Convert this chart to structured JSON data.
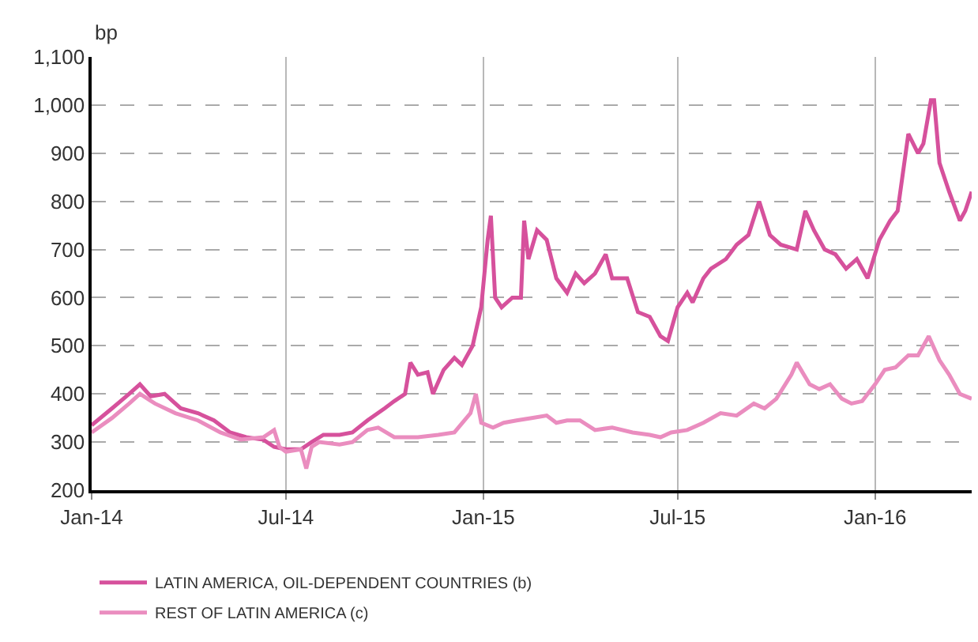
{
  "chart_data": {
    "type": "line",
    "ylabel": "bp",
    "grid": true,
    "legend": "bottom",
    "marker": "none",
    "line_style": "solid",
    "xlim": [
      "2014-01-01",
      "2016-03-31"
    ],
    "xticks": [
      {
        "value": "2014-01-01",
        "label": "Jan-14"
      },
      {
        "value": "2014-07-01",
        "label": "Jul-14"
      },
      {
        "value": "2015-01-01",
        "label": "Jan-15"
      },
      {
        "value": "2015-07-01",
        "label": "Jul-15"
      },
      {
        "value": "2016-01-01",
        "label": "Jan-16"
      }
    ],
    "ylim": [
      200,
      1100
    ],
    "yticks": [
      200,
      300,
      400,
      500,
      600,
      700,
      800,
      900,
      {
        "value": 1000,
        "label": "1,000"
      },
      {
        "value": 1100,
        "label": "1,100"
      }
    ],
    "series": [
      {
        "name": "LATIN AMERICA, OIL-DEPENDENT COUNTRIES (b)",
        "color": "#d6519c",
        "x": [
          "2014-01-01",
          "2014-01-20",
          "2014-02-05",
          "2014-02-15",
          "2014-02-25",
          "2014-03-10",
          "2014-03-25",
          "2014-04-10",
          "2014-04-25",
          "2014-05-10",
          "2014-05-25",
          "2014-06-10",
          "2014-06-20",
          "2014-07-01",
          "2014-07-15",
          "2014-07-25",
          "2014-08-05",
          "2014-08-20",
          "2014-09-01",
          "2014-09-15",
          "2014-10-01",
          "2014-10-10",
          "2014-10-20",
          "2014-10-25",
          "2014-11-01",
          "2014-11-10",
          "2014-11-15",
          "2014-11-25",
          "2014-12-05",
          "2014-12-12",
          "2014-12-22",
          "2014-12-30",
          "2015-01-05",
          "2015-01-08",
          "2015-01-12",
          "2015-01-18",
          "2015-01-28",
          "2015-02-05",
          "2015-02-08",
          "2015-02-12",
          "2015-02-20",
          "2015-03-01",
          "2015-03-10",
          "2015-03-20",
          "2015-03-28",
          "2015-04-05",
          "2015-04-15",
          "2015-04-25",
          "2015-05-01",
          "2015-05-15",
          "2015-05-25",
          "2015-06-05",
          "2015-06-15",
          "2015-06-22",
          "2015-07-01",
          "2015-07-10",
          "2015-07-15",
          "2015-07-25",
          "2015-08-01",
          "2015-08-15",
          "2015-08-25",
          "2015-09-05",
          "2015-09-15",
          "2015-09-25",
          "2015-10-05",
          "2015-10-20",
          "2015-10-28",
          "2015-11-05",
          "2015-11-15",
          "2015-11-25",
          "2015-12-05",
          "2015-12-15",
          "2015-12-25",
          "2016-01-05",
          "2016-01-15",
          "2016-01-22",
          "2016-02-01",
          "2016-02-10",
          "2016-02-15",
          "2016-02-22",
          "2016-02-25",
          "2016-03-01",
          "2016-03-10",
          "2016-03-20",
          "2016-03-25",
          "2016-03-31"
        ],
        "values": [
          335,
          370,
          400,
          420,
          395,
          400,
          370,
          360,
          345,
          320,
          310,
          305,
          290,
          285,
          285,
          300,
          315,
          315,
          320,
          345,
          370,
          385,
          400,
          465,
          440,
          445,
          400,
          450,
          475,
          460,
          500,
          580,
          720,
          770,
          600,
          580,
          600,
          600,
          760,
          680,
          740,
          720,
          640,
          610,
          650,
          630,
          650,
          690,
          640,
          640,
          570,
          560,
          520,
          510,
          580,
          610,
          590,
          640,
          660,
          680,
          710,
          730,
          800,
          730,
          710,
          700,
          780,
          740,
          700,
          690,
          660,
          680,
          640,
          720,
          760,
          780,
          940,
          900,
          920,
          1010,
          1010,
          880,
          820,
          760,
          780,
          820
        ]
      },
      {
        "name": "REST OF LATIN AMERICA (c)",
        "color": "#ea8dbf",
        "x": [
          "2014-01-01",
          "2014-01-20",
          "2014-02-05",
          "2014-02-15",
          "2014-03-01",
          "2014-03-20",
          "2014-04-10",
          "2014-05-01",
          "2014-05-20",
          "2014-06-10",
          "2014-06-20",
          "2014-06-25",
          "2014-07-01",
          "2014-07-15",
          "2014-07-20",
          "2014-07-25",
          "2014-08-01",
          "2014-08-20",
          "2014-09-01",
          "2014-09-15",
          "2014-09-25",
          "2014-10-10",
          "2014-11-01",
          "2014-11-20",
          "2014-12-05",
          "2014-12-20",
          "2014-12-25",
          "2014-12-30",
          "2015-01-10",
          "2015-01-20",
          "2015-02-01",
          "2015-02-15",
          "2015-03-01",
          "2015-03-10",
          "2015-03-20",
          "2015-04-01",
          "2015-04-15",
          "2015-05-01",
          "2015-05-20",
          "2015-06-05",
          "2015-06-15",
          "2015-06-25",
          "2015-07-10",
          "2015-07-25",
          "2015-08-10",
          "2015-08-25",
          "2015-09-10",
          "2015-09-20",
          "2015-10-01",
          "2015-10-15",
          "2015-10-20",
          "2015-11-01",
          "2015-11-10",
          "2015-11-20",
          "2015-12-01",
          "2015-12-10",
          "2015-12-20",
          "2016-01-01",
          "2016-01-10",
          "2016-01-20",
          "2016-02-01",
          "2016-02-10",
          "2016-02-20",
          "2016-03-01",
          "2016-03-10",
          "2016-03-20",
          "2016-03-31"
        ],
        "values": [
          320,
          350,
          380,
          400,
          380,
          360,
          345,
          320,
          305,
          310,
          325,
          290,
          280,
          285,
          245,
          290,
          300,
          295,
          300,
          325,
          330,
          310,
          310,
          315,
          320,
          360,
          400,
          340,
          330,
          340,
          345,
          350,
          355,
          340,
          345,
          345,
          325,
          330,
          320,
          315,
          310,
          320,
          325,
          340,
          360,
          355,
          380,
          370,
          390,
          440,
          465,
          420,
          410,
          420,
          390,
          380,
          385,
          420,
          450,
          455,
          480,
          480,
          520,
          470,
          440,
          400,
          390
        ]
      }
    ]
  }
}
